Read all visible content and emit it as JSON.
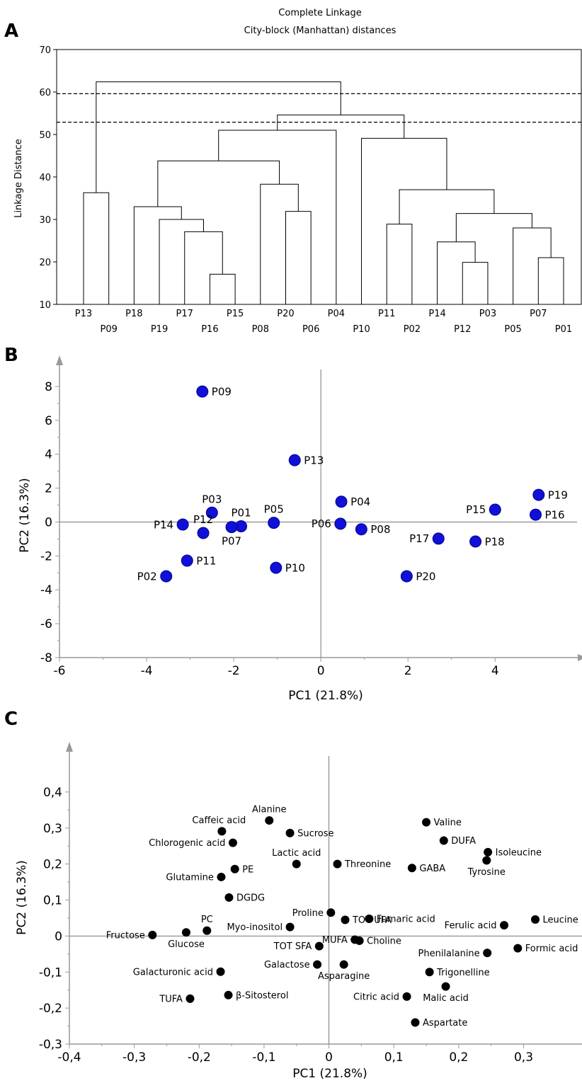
{
  "panels": {
    "a": {
      "letter": "A",
      "chart_data": {
        "type": "dendrogram",
        "title": "Complete Linkage",
        "subtitle": "City-block (Manhattan) distances",
        "ylabel": "Linkage Distance",
        "ylim": [
          10,
          70
        ],
        "yticks": [
          10,
          20,
          30,
          40,
          50,
          60,
          70
        ],
        "leaves": [
          "P13",
          "P09",
          "P18",
          "P19",
          "P17",
          "P16",
          "P15",
          "P08",
          "P20",
          "P06",
          "P04",
          "P10",
          "P11",
          "P02",
          "P14",
          "P12",
          "P03",
          "P05",
          "P07",
          "P01"
        ],
        "merges": [
          {
            "left": "P13",
            "right": "P09",
            "height": 36.3
          },
          {
            "left": "P16",
            "right": "P15",
            "height": 17.1
          },
          {
            "left": "P17",
            "right": "P16+P15",
            "height": 27.1
          },
          {
            "left": "P19",
            "right": "P17+P16+P15",
            "height": 30.0
          },
          {
            "left": "P18",
            "right": "P19+P17+P16+P15",
            "height": 33.0
          },
          {
            "left": "P20",
            "right": "P06",
            "height": 31.9
          },
          {
            "left": "P08",
            "right": "P20+P06",
            "height": 38.3
          },
          {
            "left": "P18-P15 cluster",
            "right": "P08-P06 cluster",
            "height": 43.8
          },
          {
            "left": "P18-P06 cluster",
            "right": "P04",
            "height": 51.0
          },
          {
            "left": "P11",
            "right": "P02",
            "height": 28.9
          },
          {
            "left": "P12",
            "right": "P03",
            "height": 19.9
          },
          {
            "left": "P14",
            "right": "P12+P03",
            "height": 24.7
          },
          {
            "left": "P07",
            "right": "P01",
            "height": 21.0
          },
          {
            "left": "P05",
            "right": "P07+P01",
            "height": 28.0
          },
          {
            "left": "P14-P03 cluster",
            "right": "P05-P01 cluster",
            "height": 31.4
          },
          {
            "left": "P11+P02",
            "right": "P14-P01 cluster",
            "height": 37.0
          },
          {
            "left": "P10",
            "right": "P11-P01 cluster",
            "height": 49.1
          },
          {
            "left": "P18-P04 cluster",
            "right": "P10-P01 cluster",
            "height": 54.6
          },
          {
            "left": "P13+P09",
            "right": "P18-P01 cluster",
            "height": 62.4
          }
        ],
        "cut_lines": [
          59.6,
          52.9
        ]
      }
    },
    "b": {
      "letter": "B",
      "chart_data": {
        "type": "scatter",
        "xlabel": "PC1 (21.8%)",
        "ylabel": "PC2 (16.3%)",
        "xlim": [
          -6,
          5.8
        ],
        "ylim": [
          -8,
          9
        ],
        "xticks": [
          -6,
          -4,
          -2,
          0,
          2,
          4
        ],
        "yticks": [
          -8,
          -6,
          -4,
          -2,
          0,
          2,
          4,
          6,
          8
        ],
        "point_color": "#1010d8",
        "points": [
          {
            "label": "P09",
            "x": -2.72,
            "y": 7.7,
            "side": "right"
          },
          {
            "label": "P13",
            "x": -0.6,
            "y": 3.65,
            "side": "right"
          },
          {
            "label": "P03",
            "x": -2.5,
            "y": 0.55,
            "side": "above"
          },
          {
            "label": "P12",
            "x": -2.7,
            "y": -0.65,
            "side": "above"
          },
          {
            "label": "P14",
            "x": -3.17,
            "y": -0.15,
            "side": "left"
          },
          {
            "label": "P01",
            "x": -1.83,
            "y": -0.25,
            "side": "above"
          },
          {
            "label": "P07",
            "x": -2.05,
            "y": -0.3,
            "side": "below"
          },
          {
            "label": "P05",
            "x": -1.08,
            "y": -0.05,
            "side": "above"
          },
          {
            "label": "P04",
            "x": 0.47,
            "y": 1.2,
            "side": "right"
          },
          {
            "label": "P06",
            "x": 0.45,
            "y": -0.1,
            "side": "left"
          },
          {
            "label": "P08",
            "x": 0.93,
            "y": -0.43,
            "side": "right"
          },
          {
            "label": "P11",
            "x": -3.07,
            "y": -2.28,
            "side": "right"
          },
          {
            "label": "P02",
            "x": -3.55,
            "y": -3.2,
            "side": "left"
          },
          {
            "label": "P10",
            "x": -1.03,
            "y": -2.7,
            "side": "right"
          },
          {
            "label": "P20",
            "x": 1.97,
            "y": -3.2,
            "side": "right"
          },
          {
            "label": "P17",
            "x": 2.7,
            "y": -0.98,
            "side": "left"
          },
          {
            "label": "P18",
            "x": 3.55,
            "y": -1.15,
            "side": "right"
          },
          {
            "label": "P15",
            "x": 4.0,
            "y": 0.73,
            "side": "left"
          },
          {
            "label": "P19",
            "x": 5.0,
            "y": 1.6,
            "side": "right"
          },
          {
            "label": "P16",
            "x": 4.93,
            "y": 0.43,
            "side": "right"
          }
        ]
      }
    },
    "c": {
      "letter": "C",
      "chart_data": {
        "type": "scatter",
        "xlabel": "PC1 (21.8%)",
        "ylabel": "PC2 (16.3%)",
        "xlim": [
          -0.4,
          0.39
        ],
        "ylim": [
          -0.3,
          0.5
        ],
        "xticks": [
          -0.4,
          -0.3,
          -0.2,
          -0.1,
          0,
          0.1,
          0.2,
          0.3
        ],
        "xtick_labels": [
          "-0,4",
          "-0,3",
          "-0,2",
          "-0,1",
          "0",
          "0,1",
          "0,2",
          "0,3"
        ],
        "yticks": [
          -0.3,
          -0.2,
          -0.1,
          0,
          0.1,
          0.2,
          0.3,
          0.4
        ],
        "ytick_labels": [
          "-0,3",
          "-0,2",
          "-0,1",
          "0",
          "0,1",
          "0,2",
          "0,3",
          "0,4"
        ],
        "point_color": "#000000",
        "points": [
          {
            "label": "Alanine",
            "x": -0.092,
            "y": 0.321,
            "side": "above"
          },
          {
            "label": "Caffeic acid",
            "x": -0.165,
            "y": 0.291,
            "side": "aboveleft"
          },
          {
            "label": "Sucrose",
            "x": -0.06,
            "y": 0.286,
            "side": "right"
          },
          {
            "label": "Chlorogenic acid",
            "x": -0.148,
            "y": 0.259,
            "side": "left"
          },
          {
            "label": "Lactic acid",
            "x": -0.05,
            "y": 0.2,
            "side": "above"
          },
          {
            "label": "Threonine",
            "x": 0.013,
            "y": 0.2,
            "side": "right"
          },
          {
            "label": "PE",
            "x": -0.145,
            "y": 0.186,
            "side": "right"
          },
          {
            "label": "Glutamine",
            "x": -0.166,
            "y": 0.164,
            "side": "left"
          },
          {
            "label": "DGDG",
            "x": -0.154,
            "y": 0.107,
            "side": "right"
          },
          {
            "label": "Valine",
            "x": 0.15,
            "y": 0.316,
            "side": "right"
          },
          {
            "label": "DUFA",
            "x": 0.177,
            "y": 0.265,
            "side": "right"
          },
          {
            "label": "Isoleucine",
            "x": 0.245,
            "y": 0.233,
            "side": "right"
          },
          {
            "label": "GABA",
            "x": 0.128,
            "y": 0.189,
            "side": "right"
          },
          {
            "label": "Tyrosine",
            "x": 0.243,
            "y": 0.21,
            "side": "below"
          },
          {
            "label": "Proline",
            "x": 0.003,
            "y": 0.065,
            "side": "left"
          },
          {
            "label": "TOT UFA",
            "x": 0.025,
            "y": 0.045,
            "side": "right"
          },
          {
            "label": "Fumaric acid",
            "x": 0.062,
            "y": 0.048,
            "side": "right"
          },
          {
            "label": "Ferulic acid",
            "x": 0.27,
            "y": 0.03,
            "side": "left"
          },
          {
            "label": "Leucine",
            "x": 0.318,
            "y": 0.046,
            "side": "right"
          },
          {
            "label": "PC",
            "x": -0.188,
            "y": 0.015,
            "side": "above"
          },
          {
            "label": "Myo-inositol",
            "x": -0.06,
            "y": 0.025,
            "side": "left"
          },
          {
            "label": "Fructose",
            "x": -0.272,
            "y": 0.003,
            "side": "left"
          },
          {
            "label": "Glucose",
            "x": -0.22,
            "y": 0.01,
            "side": "below"
          },
          {
            "label": "MUFA",
            "x": 0.04,
            "y": -0.01,
            "side": "left"
          },
          {
            "label": "Choline",
            "x": 0.047,
            "y": -0.013,
            "side": "right"
          },
          {
            "label": "TOT SFA",
            "x": -0.015,
            "y": -0.028,
            "side": "left"
          },
          {
            "label": "Formic acid",
            "x": 0.291,
            "y": -0.034,
            "side": "right"
          },
          {
            "label": "Phenilalanine",
            "x": 0.244,
            "y": -0.047,
            "side": "left"
          },
          {
            "label": "Galactose",
            "x": -0.018,
            "y": -0.079,
            "side": "left"
          },
          {
            "label": "Asparagine",
            "x": 0.023,
            "y": -0.079,
            "side": "below"
          },
          {
            "label": "Galacturonic acid",
            "x": -0.167,
            "y": -0.099,
            "side": "left"
          },
          {
            "label": "Trigonelline",
            "x": 0.155,
            "y": -0.1,
            "side": "right"
          },
          {
            "label": "Malic acid",
            "x": 0.18,
            "y": -0.14,
            "side": "below"
          },
          {
            "label": "Citric acid",
            "x": 0.12,
            "y": -0.168,
            "side": "left"
          },
          {
            "label": "β-Sitosterol",
            "x": -0.155,
            "y": -0.164,
            "side": "right"
          },
          {
            "label": "TUFA",
            "x": -0.214,
            "y": -0.174,
            "side": "left"
          },
          {
            "label": "Aspartate",
            "x": 0.133,
            "y": -0.24,
            "side": "right"
          }
        ]
      }
    }
  }
}
